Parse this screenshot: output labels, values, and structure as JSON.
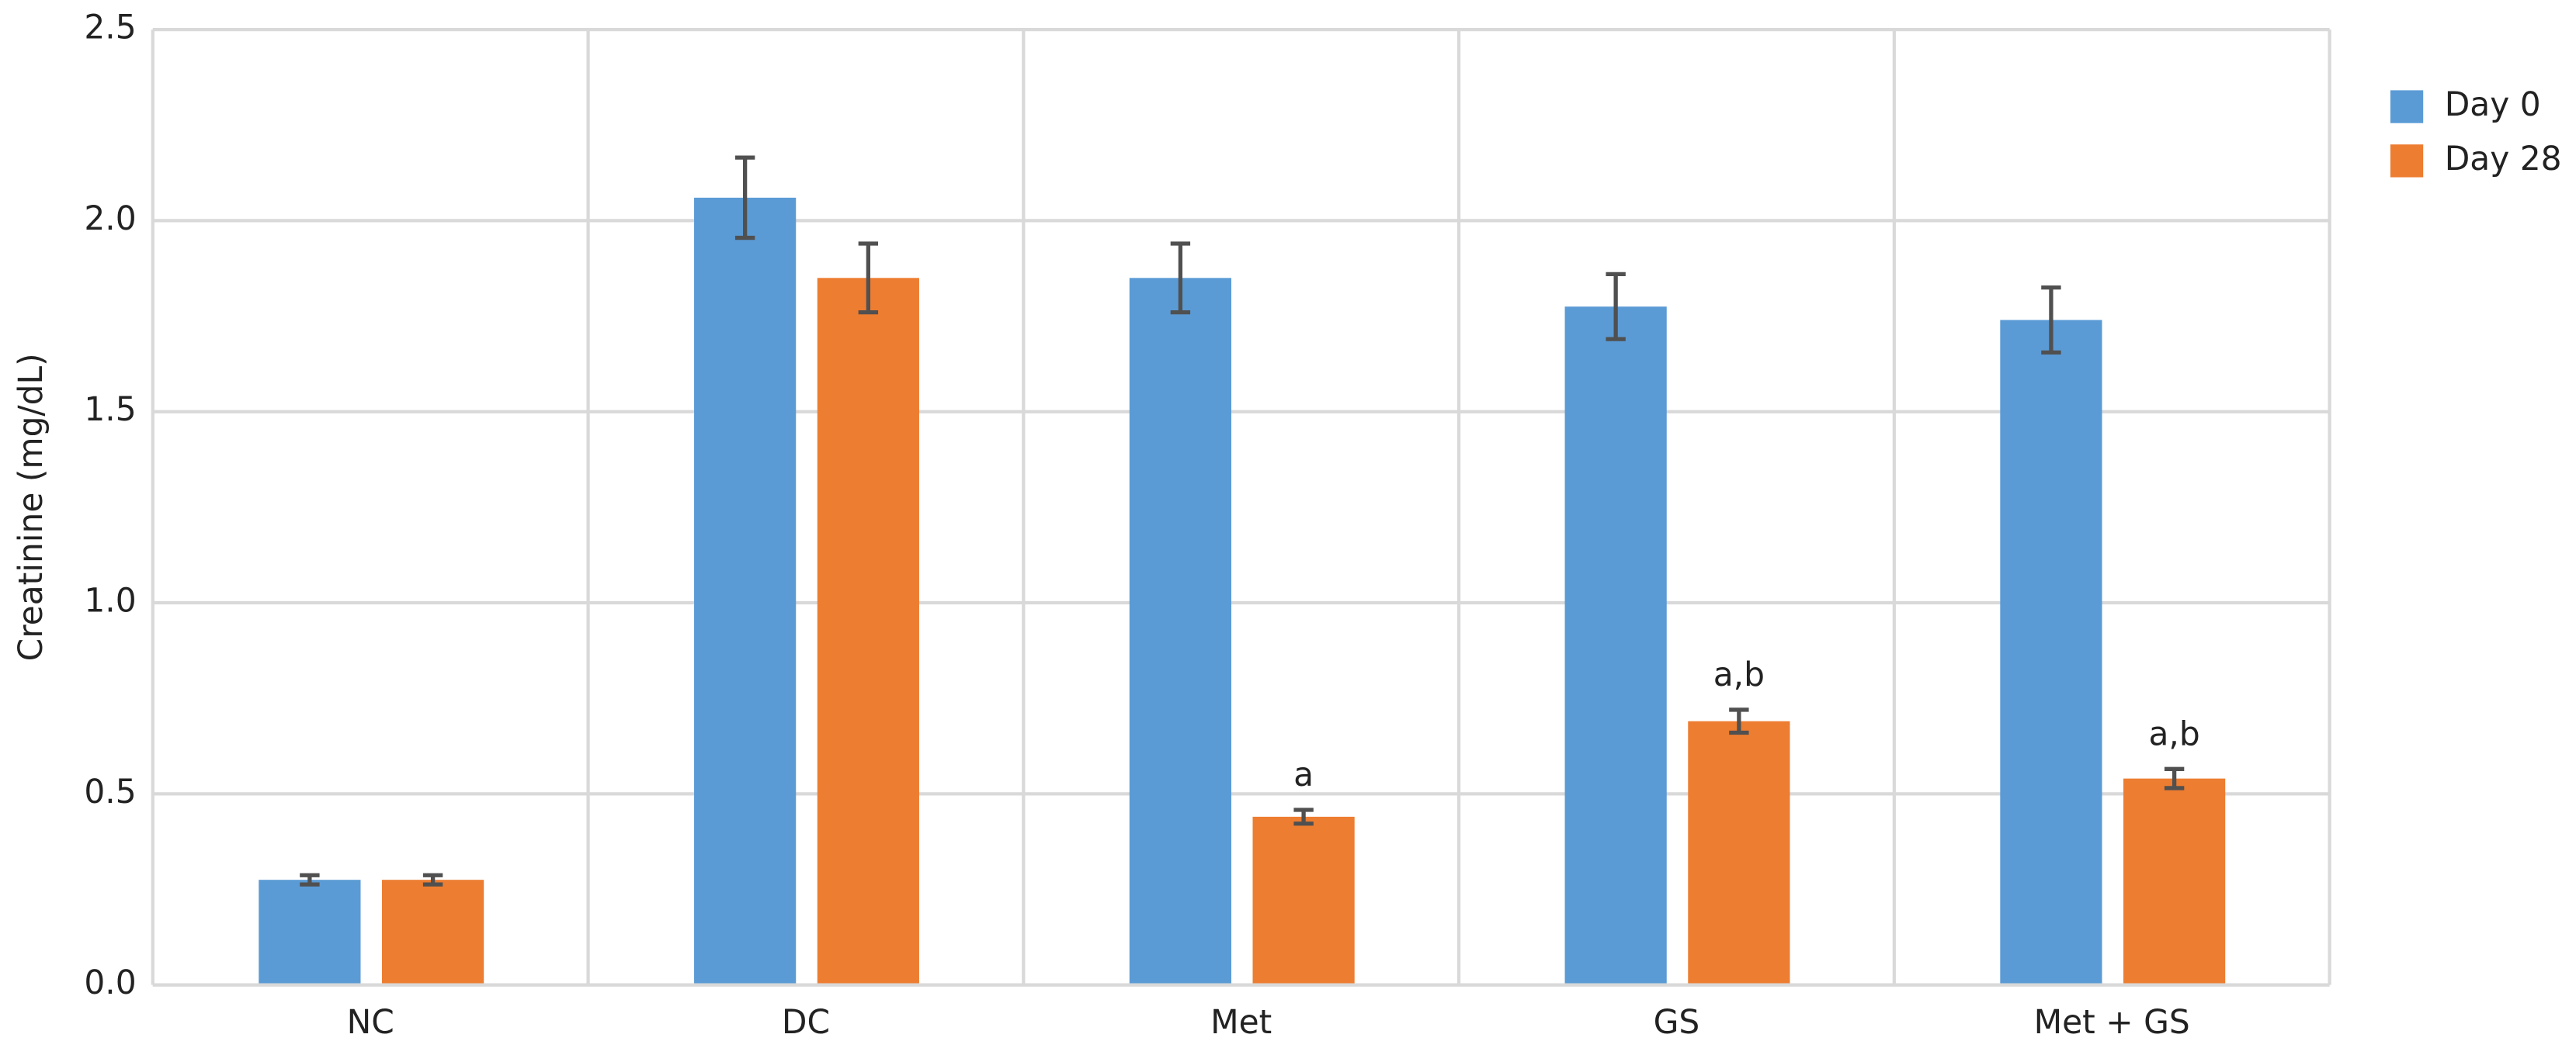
{
  "chart_data": {
    "type": "bar",
    "y_label": "Creatinine (mg/dL)",
    "categories": [
      "NC",
      "DC",
      "Met",
      "GS",
      "Met + GS"
    ],
    "series": [
      {
        "name": "Day 0",
        "color": "#5b9bd5",
        "values": [
          0.275,
          2.06,
          1.85,
          1.775,
          1.74
        ],
        "errors": [
          0.012,
          0.105,
          0.09,
          0.085,
          0.085
        ]
      },
      {
        "name": "Day 28",
        "color": "#ed7d31",
        "values": [
          0.275,
          1.85,
          0.44,
          0.69,
          0.54
        ],
        "errors": [
          0.012,
          0.09,
          0.018,
          0.03,
          0.025
        ],
        "annotations": [
          null,
          null,
          "a",
          "a,b",
          "a,b"
        ]
      }
    ],
    "ylim": [
      0,
      2.5
    ],
    "yticks": [
      {
        "value": 0,
        "label": "0.0"
      },
      0.5,
      {
        "value": 1,
        "label": "1.0"
      },
      1.5,
      {
        "value": 2,
        "label": "2.0"
      },
      2.5
    ],
    "grid": true,
    "legend": "right"
  }
}
